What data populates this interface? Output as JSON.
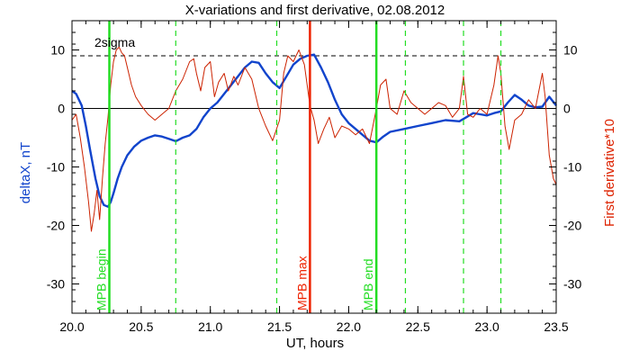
{
  "chart_data": {
    "type": "line",
    "title": "X-variations and first derivative, 02.08.2012",
    "xlabel": "UT, hours",
    "ylabel_left": "deltaX, nT",
    "ylabel_right": "First derivative*10",
    "xlim": [
      20.0,
      23.5
    ],
    "ylim": [
      -35,
      15
    ],
    "xticks": [
      "20.0",
      "20.5",
      "21.0",
      "21.5",
      "22.0",
      "22.5",
      "23.0",
      "23.5"
    ],
    "yticks": [
      "-30",
      "-20",
      "-10",
      "0",
      "10"
    ],
    "zero_line": 0,
    "threshold": {
      "label": "2sigma",
      "value": 9
    },
    "markers": [
      {
        "label": "MPB begin",
        "x": 20.27,
        "color": "#22dd22"
      },
      {
        "label": "MPB max",
        "x": 21.72,
        "color": "#ee2200"
      },
      {
        "label": "MPB end",
        "x": 22.2,
        "color": "#22dd22"
      }
    ],
    "dashed_markers": [
      20.75,
      21.48,
      22.41,
      22.83,
      23.1
    ],
    "series": [
      {
        "name": "",
        "axis": "left",
        "color": "#1144cc",
        "x": [
          20.0,
          20.03,
          20.07,
          20.1,
          20.13,
          20.17,
          20.2,
          20.23,
          20.26,
          20.28,
          20.3,
          20.33,
          20.36,
          20.4,
          20.45,
          20.5,
          20.55,
          20.6,
          20.65,
          20.7,
          20.75,
          20.8,
          20.85,
          20.9,
          20.95,
          21.0,
          21.05,
          21.1,
          21.15,
          21.2,
          21.25,
          21.3,
          21.35,
          21.4,
          21.45,
          21.5,
          21.55,
          21.6,
          21.65,
          21.7,
          21.75,
          21.8,
          21.85,
          21.9,
          21.95,
          22.0,
          22.05,
          22.1,
          22.15,
          22.2,
          22.25,
          22.3,
          22.4,
          22.5,
          22.6,
          22.7,
          22.8,
          22.85,
          22.9,
          22.95,
          23.0,
          23.05,
          23.1,
          23.15,
          23.2,
          23.25,
          23.3,
          23.35,
          23.4,
          23.45,
          23.5
        ],
        "values": [
          3.0,
          2.5,
          0.5,
          -3.0,
          -7.0,
          -12.0,
          -15.0,
          -16.5,
          -16.8,
          -16.0,
          -14.5,
          -12.0,
          -10.0,
          -8.0,
          -6.5,
          -5.5,
          -5.0,
          -4.6,
          -4.8,
          -5.2,
          -5.6,
          -5.0,
          -4.6,
          -3.5,
          -1.5,
          0.0,
          1.0,
          2.5,
          4.0,
          5.5,
          7.0,
          8.0,
          7.8,
          6.0,
          4.5,
          3.5,
          5.5,
          7.5,
          8.5,
          9.0,
          9.2,
          7.0,
          4.5,
          1.5,
          -1.0,
          -2.5,
          -3.5,
          -4.5,
          -5.5,
          -5.8,
          -4.8,
          -4.0,
          -3.5,
          -3.0,
          -2.5,
          -2.0,
          -2.2,
          -1.5,
          -0.8,
          -1.0,
          -1.2,
          -0.8,
          -0.5,
          1.0,
          2.3,
          1.5,
          0.5,
          0.2,
          0.3,
          2.0,
          0.5
        ]
      },
      {
        "name": "",
        "axis": "right",
        "color": "#cc2200",
        "x": [
          20.0,
          20.03,
          20.06,
          20.09,
          20.12,
          20.14,
          20.16,
          20.18,
          20.2,
          20.22,
          20.24,
          20.26,
          20.28,
          20.3,
          20.32,
          20.34,
          20.36,
          20.38,
          20.4,
          20.43,
          20.46,
          20.5,
          20.55,
          20.6,
          20.65,
          20.7,
          20.75,
          20.8,
          20.85,
          20.88,
          20.9,
          20.93,
          20.96,
          21.0,
          21.03,
          21.06,
          21.1,
          21.13,
          21.17,
          21.2,
          21.25,
          21.3,
          21.35,
          21.4,
          21.45,
          21.5,
          21.53,
          21.56,
          21.6,
          21.64,
          21.68,
          21.72,
          21.75,
          21.78,
          21.82,
          21.86,
          21.9,
          21.95,
          22.0,
          22.05,
          22.1,
          22.15,
          22.2,
          22.23,
          22.27,
          22.3,
          22.35,
          22.4,
          22.45,
          22.5,
          22.55,
          22.6,
          22.65,
          22.7,
          22.75,
          22.8,
          22.83,
          22.86,
          22.9,
          22.95,
          23.0,
          23.05,
          23.08,
          23.1,
          23.13,
          23.16,
          23.2,
          23.25,
          23.3,
          23.35,
          23.4,
          23.42,
          23.45,
          23.48,
          23.5
        ],
        "values": [
          -2.0,
          -1.0,
          -5.0,
          -10.0,
          -16.0,
          -21.0,
          -18.0,
          -14.0,
          -19.0,
          -12.0,
          -6.0,
          -1.5,
          4.0,
          8.0,
          10.0,
          10.5,
          9.5,
          9.0,
          7.0,
          4.0,
          2.0,
          0.5,
          -1.0,
          -2.0,
          -1.0,
          0.0,
          3.0,
          5.0,
          8.0,
          8.5,
          6.0,
          3.0,
          7.0,
          8.0,
          2.0,
          4.5,
          6.0,
          3.0,
          5.5,
          4.0,
          7.0,
          5.0,
          0.0,
          -3.0,
          -5.5,
          -2.0,
          6.0,
          9.0,
          8.0,
          10.0,
          7.5,
          0.5,
          -2.0,
          -6.0,
          -3.5,
          -1.5,
          -5.0,
          -3.0,
          -3.5,
          -4.5,
          -3.5,
          -6.0,
          0.0,
          4.0,
          5.0,
          0.0,
          -1.0,
          3.0,
          1.0,
          0.0,
          -1.0,
          0.0,
          1.0,
          0.5,
          -1.5,
          0.0,
          5.5,
          -1.0,
          -1.5,
          0.0,
          -1.0,
          4.0,
          9.0,
          6.0,
          -3.0,
          -7.0,
          -2.0,
          -1.0,
          1.5,
          0.0,
          6.0,
          2.0,
          -8.0,
          -12.0,
          -13.0
        ]
      }
    ],
    "grid": false,
    "legend": "none"
  }
}
